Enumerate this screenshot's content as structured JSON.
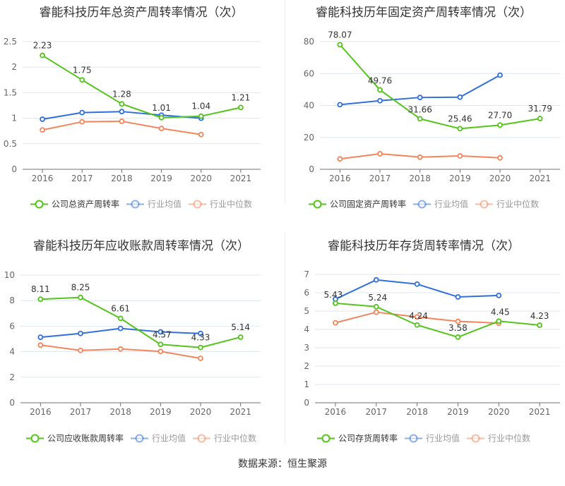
{
  "colors": {
    "company": "#52c41a",
    "avg": "#2f6fde",
    "median": "#f5845a",
    "axis_text": "#666666",
    "grid": "#e0e6f1"
  },
  "source": "数据来源：恒生聚源",
  "chart_data": [
    {
      "type": "line",
      "title": "睿能科技历年总资产周转率情况（次）",
      "categories": [
        "2016",
        "2017",
        "2018",
        "2019",
        "2020",
        "2021"
      ],
      "ylim": [
        0,
        2.5
      ],
      "yticks": [
        "0",
        "0.5",
        "1",
        "1.5",
        "2",
        "2.5"
      ],
      "ytick_values": [
        0,
        0.5,
        1,
        1.5,
        2,
        2.5
      ],
      "grid": true,
      "legend_position": "bottom",
      "series": [
        {
          "name": "公司总资产周转率",
          "key": "company",
          "values": [
            2.23,
            1.75,
            1.28,
            1.01,
            1.04,
            1.21
          ],
          "labels": [
            "2.23",
            "1.75",
            "1.28",
            "1.01",
            "1.04",
            "1.21"
          ]
        },
        {
          "name": "行业均值",
          "key": "avg",
          "values": [
            0.98,
            1.11,
            1.13,
            1.06,
            1.0,
            null
          ]
        },
        {
          "name": "行业中位数",
          "key": "median",
          "values": [
            0.77,
            0.93,
            0.94,
            0.8,
            0.68,
            null
          ]
        }
      ]
    },
    {
      "type": "line",
      "title": "睿能科技历年固定资产周转率情况（次）",
      "categories": [
        "2016",
        "2017",
        "2018",
        "2019",
        "2020",
        "2021"
      ],
      "ylim": [
        0,
        80
      ],
      "yticks": [
        "0",
        "20",
        "40",
        "60",
        "80"
      ],
      "ytick_values": [
        0,
        20,
        40,
        60,
        80
      ],
      "grid": true,
      "legend_position": "bottom",
      "series": [
        {
          "name": "公司固定资产周转率",
          "key": "company",
          "values": [
            78.07,
            49.76,
            31.66,
            25.46,
            27.7,
            31.79
          ],
          "labels": [
            "78.07",
            "49.76",
            "31.66",
            "25.46",
            "27.70",
            "31.79"
          ]
        },
        {
          "name": "行业均值",
          "key": "avg",
          "values": [
            40.5,
            43.0,
            45.0,
            45.2,
            59.0,
            null
          ]
        },
        {
          "name": "行业中位数",
          "key": "median",
          "values": [
            6.5,
            9.7,
            7.6,
            8.4,
            7.2,
            null
          ]
        }
      ]
    },
    {
      "type": "line",
      "title": "睿能科技历年应收账款周转率情况（次）",
      "categories": [
        "2016",
        "2017",
        "2018",
        "2019",
        "2020",
        "2021"
      ],
      "ylim": [
        0,
        10
      ],
      "yticks": [
        "0",
        "2",
        "4",
        "6",
        "8",
        "10"
      ],
      "ytick_values": [
        0,
        2,
        4,
        6,
        8,
        10
      ],
      "grid": true,
      "legend_position": "bottom",
      "series": [
        {
          "name": "公司应收账款周转率",
          "key": "company",
          "values": [
            8.11,
            8.25,
            6.61,
            4.57,
            4.33,
            5.14
          ],
          "labels": [
            "8.11",
            "8.25",
            "6.61",
            "4.57",
            "4.33",
            "5.14"
          ]
        },
        {
          "name": "行业均值",
          "key": "avg",
          "values": [
            5.13,
            5.43,
            5.82,
            5.55,
            5.43,
            null
          ]
        },
        {
          "name": "行业中位数",
          "key": "median",
          "values": [
            4.52,
            4.1,
            4.21,
            4.02,
            3.48,
            null
          ]
        }
      ]
    },
    {
      "type": "line",
      "title": "睿能科技历年存货周转率情况（次）",
      "categories": [
        "2016",
        "2017",
        "2018",
        "2019",
        "2020",
        "2021"
      ],
      "ylim": [
        0,
        7
      ],
      "yticks": [
        "0",
        "1",
        "2",
        "3",
        "4",
        "5",
        "6",
        "7"
      ],
      "ytick_values": [
        0,
        1,
        2,
        3,
        4,
        5,
        6,
        7
      ],
      "grid": true,
      "legend_position": "bottom",
      "series": [
        {
          "name": "公司存货周转率",
          "key": "company",
          "values": [
            5.43,
            5.24,
            4.24,
            3.58,
            4.45,
            4.23
          ],
          "labels": [
            "5.43",
            "5.24",
            "4.24",
            "3.58",
            "4.45",
            "4.23"
          ]
        },
        {
          "name": "行业均值",
          "key": "avg",
          "values": [
            5.65,
            6.7,
            6.47,
            5.77,
            5.85,
            null
          ]
        },
        {
          "name": "行业中位数",
          "key": "median",
          "values": [
            4.36,
            4.94,
            4.68,
            4.44,
            4.34,
            null
          ]
        }
      ]
    }
  ]
}
